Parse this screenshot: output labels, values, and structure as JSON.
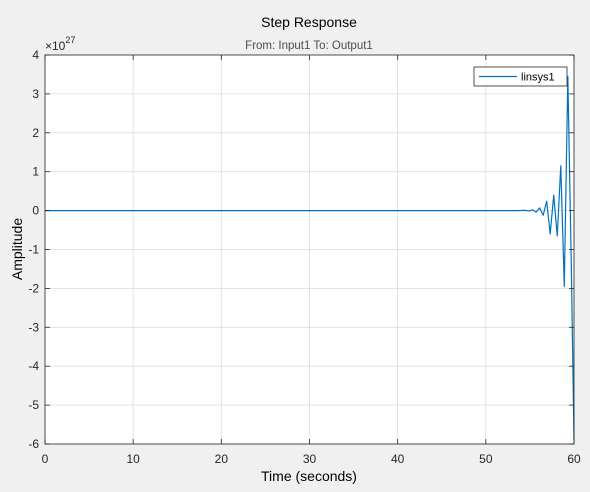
{
  "chart_data": {
    "type": "line",
    "title": "Step Response",
    "subtitle": "From: Input1  To: Output1",
    "xlabel": "Time (seconds)",
    "ylabel": "Amplitude",
    "y_exponent_label": "×10",
    "y_exponent": "27",
    "xlim": [
      0,
      60
    ],
    "ylim": [
      -6,
      4
    ],
    "xticks": [
      0,
      10,
      20,
      30,
      40,
      50,
      60
    ],
    "yticks": [
      -6,
      -5,
      -4,
      -3,
      -2,
      -1,
      0,
      1,
      2,
      3,
      4
    ],
    "grid": true,
    "legend_position": "top-right",
    "series": [
      {
        "name": "linsys1",
        "color": "#0072bd",
        "x": [
          0,
          50,
          53.5,
          54.5,
          54.9,
          55.3,
          55.7,
          56.1,
          56.5,
          56.9,
          57.3,
          57.7,
          58.1,
          58.5,
          58.9,
          59.3,
          59.7,
          60
        ],
        "y": [
          0,
          0,
          0,
          0.005,
          -0.01,
          0.02,
          -0.04,
          0.07,
          -0.12,
          0.24,
          -0.6,
          0.4,
          -0.65,
          1.15,
          -1.95,
          3.45,
          -1.5,
          -5.9
        ]
      }
    ]
  }
}
